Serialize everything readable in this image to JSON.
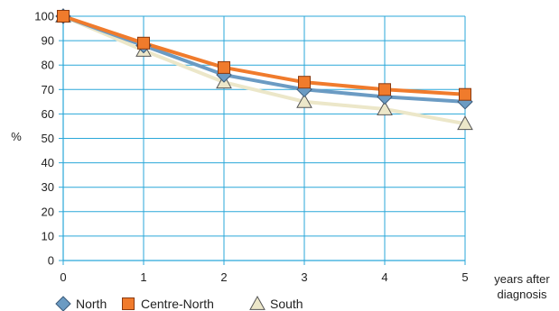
{
  "chart_data": {
    "type": "line",
    "title": "",
    "xlabel": "years after diagnosis",
    "xlabel_lines": [
      "years after",
      "diagnosis"
    ],
    "ylabel": "%",
    "x": [
      0,
      1,
      2,
      3,
      4,
      5
    ],
    "xlim": [
      0,
      5
    ],
    "ylim": [
      0,
      100
    ],
    "ytick_step": 10,
    "grid": true,
    "legend_position": "bottom-left",
    "series": [
      {
        "name": "North",
        "values": [
          100,
          88,
          76,
          70,
          67,
          65
        ],
        "color": "#6b9bc3",
        "marker": "diamond"
      },
      {
        "name": "Centre-North",
        "values": [
          100,
          89,
          79,
          73,
          70,
          68
        ],
        "color": "#f07b2c",
        "marker": "square"
      },
      {
        "name": "South",
        "values": [
          100,
          86,
          73,
          65,
          62,
          56
        ],
        "color": "#ece7c9",
        "marker": "triangle"
      }
    ]
  }
}
